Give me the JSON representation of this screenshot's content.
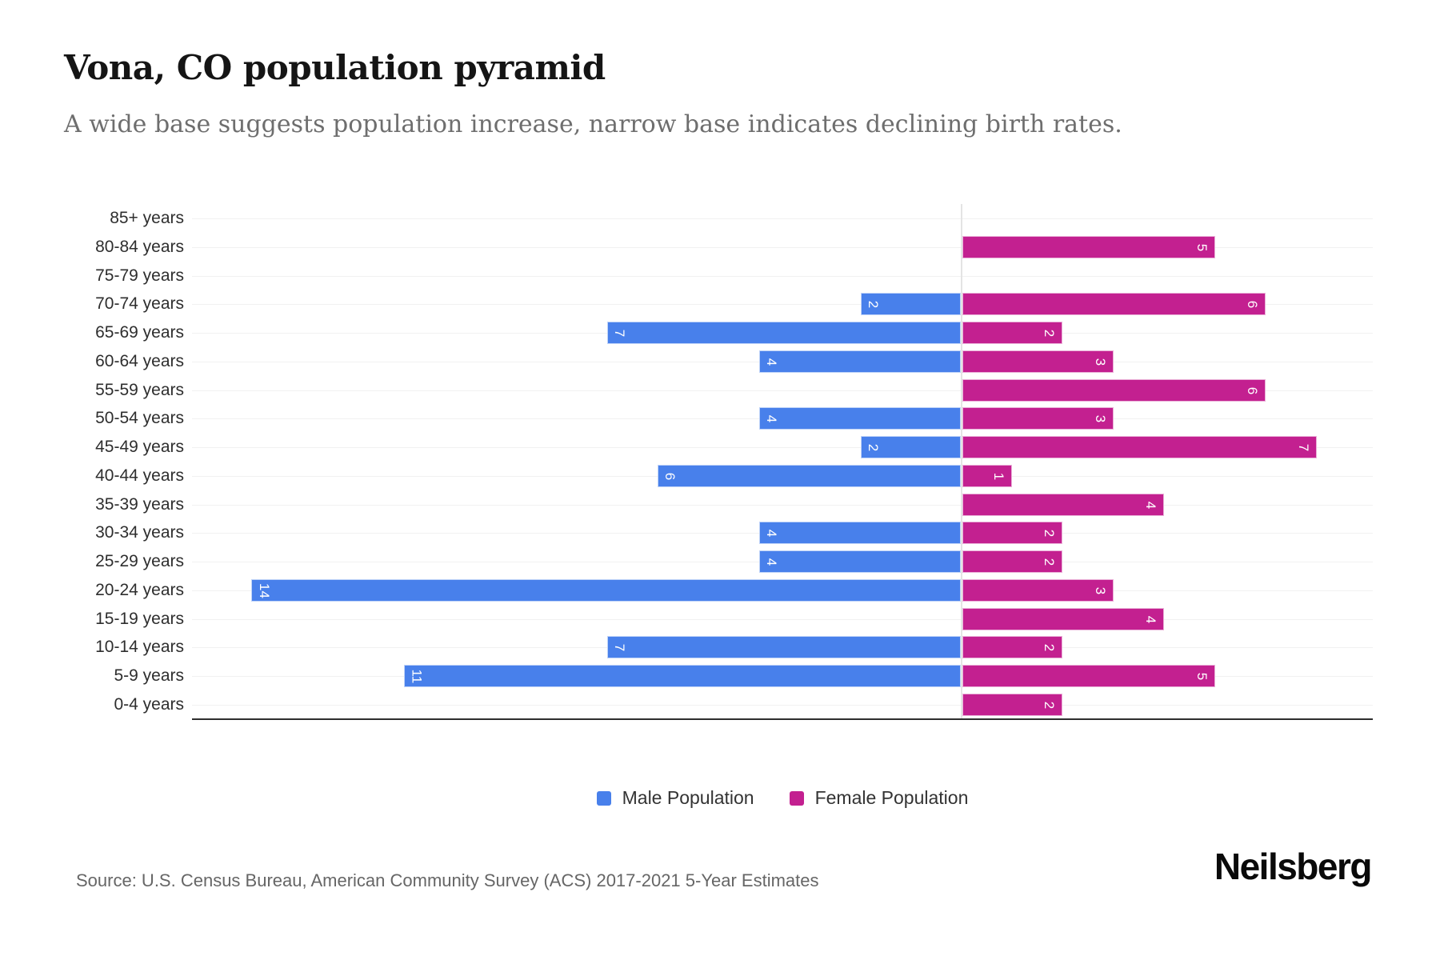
{
  "header": {
    "title": "Vona, CO population pyramid",
    "subtitle": "A wide base suggests population increase, narrow base indicates declining birth rates."
  },
  "chart_data": {
    "type": "bar",
    "variant": "population-pyramid",
    "orientation": "horizontal",
    "categories": [
      "85+ years",
      "80-84 years",
      "75-79 years",
      "70-74 years",
      "65-69 years",
      "60-64 years",
      "55-59 years",
      "50-54 years",
      "45-49 years",
      "40-44 years",
      "35-39 years",
      "30-34 years",
      "25-29 years",
      "20-24 years",
      "15-19 years",
      "10-14 years",
      "5-9 years",
      "0-4 years"
    ],
    "series": [
      {
        "name": "Male Population",
        "side": "left",
        "color": "#4880EB",
        "values": [
          0,
          0,
          0,
          2,
          7,
          4,
          0,
          4,
          2,
          6,
          0,
          4,
          4,
          14,
          0,
          7,
          11,
          0
        ]
      },
      {
        "name": "Female Population",
        "side": "right",
        "color": "#C32090",
        "values": [
          0,
          5,
          0,
          6,
          2,
          3,
          6,
          3,
          7,
          1,
          4,
          2,
          2,
          3,
          4,
          2,
          5,
          2
        ]
      }
    ],
    "value_labels": {
      "visible_when": "value > 0",
      "placement": "inside-end",
      "rotation_deg": 90,
      "color": "#ffffff"
    },
    "x_axis": {
      "left_max": 14,
      "right_max": 8,
      "tick_labels_visible": false
    },
    "grid": {
      "horizontal_row_lines": true,
      "vertical_zero_line": true
    },
    "legend_position": "bottom-center"
  },
  "colors": {
    "male": "#4880EB",
    "female": "#C32090",
    "grid_line": "#f1f1f1",
    "zero_line": "#e4e4e4",
    "axis_line": "#2e2e2e",
    "background": "#ffffff"
  },
  "footer": {
    "source": "Source: U.S. Census Bureau, American Community Survey (ACS) 2017-2021 5-Year Estimates",
    "brand": "Neilsberg"
  }
}
